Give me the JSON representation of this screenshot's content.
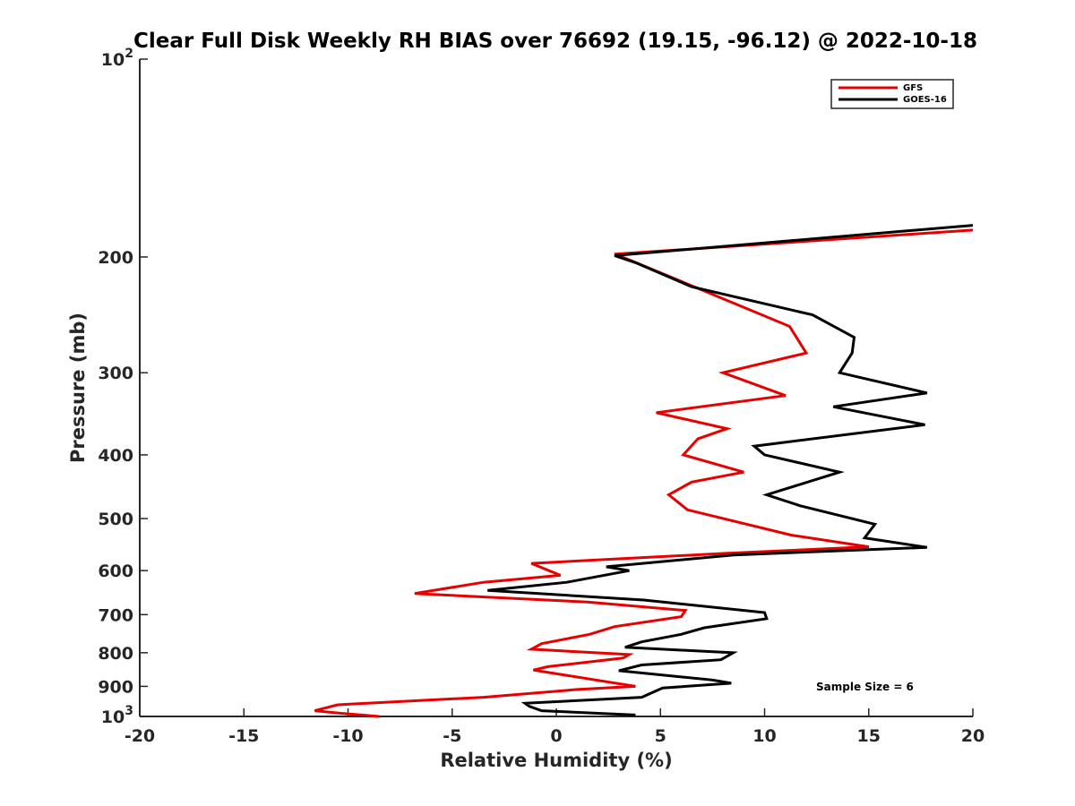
{
  "chart_data": {
    "type": "line",
    "title": "Clear Full Disk Weekly RH BIAS over 76692 (19.15, -96.12) @ 2022-10-18",
    "xlabel": "Relative Humidity (%)",
    "ylabel": "Pressure (mb)",
    "xlim": [
      -20,
      20
    ],
    "ylim": [
      100,
      1000
    ],
    "yscale": "log",
    "y_reversed": true,
    "xticks": [
      -20,
      -15,
      -10,
      -5,
      0,
      5,
      10,
      15,
      20
    ],
    "xtick_labels": [
      "-20",
      "-15",
      "-10",
      "-5",
      "0",
      "5",
      "10",
      "15",
      "20"
    ],
    "yticks": [
      200,
      300,
      400,
      500,
      600,
      700,
      800,
      900
    ],
    "ytick_labels": [
      "200",
      "300",
      "400",
      "500",
      "600",
      "700",
      "800",
      "900"
    ],
    "y_endpoint_labels": [
      {
        "value": 100,
        "base": "10",
        "exp": "2"
      },
      {
        "value": 1000,
        "base": "10",
        "exp": "3"
      }
    ],
    "legend_position": "top-right",
    "annotation": "Sample Size = 6",
    "series": [
      {
        "name": "GFS",
        "color": "#e60000",
        "points": [
          [
            20.0,
            182
          ],
          [
            2.8,
            198
          ],
          [
            3.5,
            202
          ],
          [
            11.2,
            255
          ],
          [
            12.0,
            280
          ],
          [
            8.0,
            300
          ],
          [
            11.0,
            325
          ],
          [
            4.8,
            345
          ],
          [
            8.2,
            365
          ],
          [
            6.8,
            378
          ],
          [
            6.1,
            400
          ],
          [
            9.0,
            425
          ],
          [
            6.5,
            440
          ],
          [
            5.4,
            460
          ],
          [
            6.3,
            485
          ],
          [
            11.3,
            530
          ],
          [
            15.0,
            552
          ],
          [
            8.0,
            565
          ],
          [
            -1.2,
            585
          ],
          [
            0.2,
            610
          ],
          [
            -3.5,
            625
          ],
          [
            -6.8,
            650
          ],
          [
            1.5,
            670
          ],
          [
            6.2,
            690
          ],
          [
            6.0,
            705
          ],
          [
            2.8,
            730
          ],
          [
            1.6,
            750
          ],
          [
            -0.7,
            775
          ],
          [
            -1.2,
            790
          ],
          [
            3.5,
            805
          ],
          [
            3.2,
            815
          ],
          [
            -0.4,
            840
          ],
          [
            -1.1,
            850
          ],
          [
            3.8,
            900
          ],
          [
            1.0,
            910
          ],
          [
            -3.5,
            935
          ],
          [
            -10.5,
            960
          ],
          [
            -11.6,
            980
          ],
          [
            -10.2,
            990
          ],
          [
            -8.5,
            1000
          ]
        ]
      },
      {
        "name": "GOES-16",
        "color": "#000000",
        "points": [
          [
            20.0,
            179
          ],
          [
            2.8,
            199
          ],
          [
            3.8,
            204
          ],
          [
            6.5,
            222
          ],
          [
            12.3,
            245
          ],
          [
            14.3,
            265
          ],
          [
            14.2,
            280
          ],
          [
            13.6,
            300
          ],
          [
            17.8,
            322
          ],
          [
            13.3,
            338
          ],
          [
            17.7,
            360
          ],
          [
            9.5,
            388
          ],
          [
            10.0,
            400
          ],
          [
            13.6,
            425
          ],
          [
            10.1,
            460
          ],
          [
            11.7,
            478
          ],
          [
            15.3,
            510
          ],
          [
            14.8,
            535
          ],
          [
            17.8,
            553
          ],
          [
            8.5,
            568
          ],
          [
            2.4,
            592
          ],
          [
            3.5,
            600
          ],
          [
            0.5,
            625
          ],
          [
            -3.3,
            643
          ],
          [
            4.2,
            665
          ],
          [
            10.0,
            695
          ],
          [
            10.1,
            710
          ],
          [
            7.1,
            733
          ],
          [
            6.0,
            750
          ],
          [
            4.1,
            770
          ],
          [
            3.3,
            785
          ],
          [
            8.5,
            800
          ],
          [
            7.9,
            820
          ],
          [
            4.1,
            835
          ],
          [
            3.0,
            852
          ],
          [
            7.5,
            880
          ],
          [
            8.4,
            890
          ],
          [
            5.1,
            905
          ],
          [
            4.1,
            935
          ],
          [
            -1.5,
            955
          ],
          [
            -1.3,
            965
          ],
          [
            -0.7,
            980
          ],
          [
            3.8,
            995
          ]
        ]
      }
    ]
  }
}
